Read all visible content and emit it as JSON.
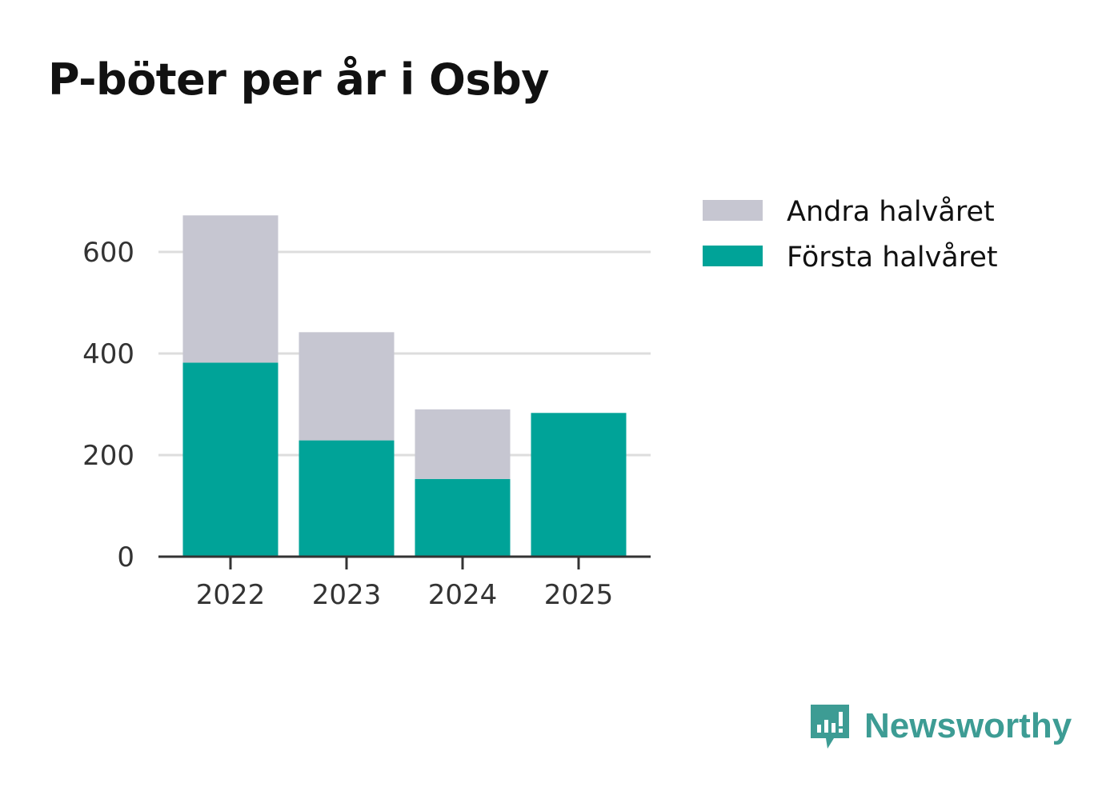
{
  "chart_data": {
    "type": "bar",
    "stacked": true,
    "title": "P-böter per år i Osby",
    "categories": [
      "2022",
      "2023",
      "2024",
      "2025"
    ],
    "series": [
      {
        "name": "Första halvåret",
        "color": "#00a398",
        "values": [
          382,
          229,
          153,
          283
        ]
      },
      {
        "name": "Andra halvåret",
        "color": "#c6c6d1",
        "values": [
          290,
          213,
          137,
          0
        ]
      }
    ],
    "legend_order": [
      "Andra halvåret",
      "Första halvåret"
    ],
    "ylim": [
      0,
      700
    ],
    "yticks": [
      0,
      200,
      400,
      600
    ],
    "grid": true,
    "legend_position": "top-right",
    "xlabel": "",
    "ylabel": ""
  },
  "brand": {
    "name": "Newsworthy",
    "icon": "newsworthy-logo-icon",
    "color": "#3d9c94"
  }
}
